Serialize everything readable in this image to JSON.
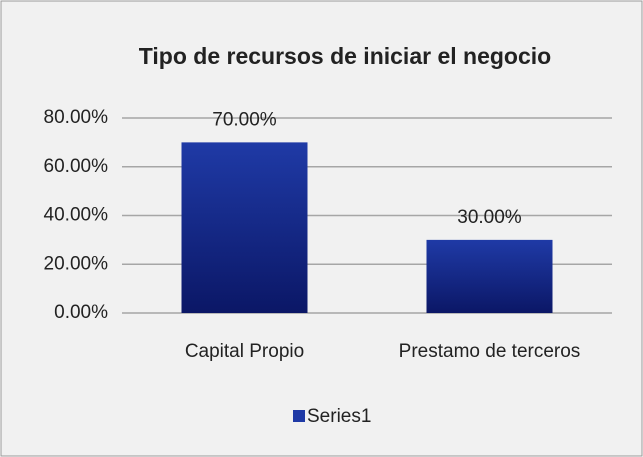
{
  "chart_data": {
    "type": "bar",
    "title": "Tipo de recursos de iniciar el negocio",
    "categories": [
      "Capital Propio",
      "Prestamo de terceros"
    ],
    "series": [
      {
        "name": "Series1",
        "color": "#1f3aa6",
        "values": [
          70,
          30
        ],
        "value_labels": [
          "70.00%",
          "30.00%"
        ]
      }
    ],
    "ylim": [
      0,
      80
    ],
    "yticks": [
      {
        "value": 0,
        "label": "0.00%"
      },
      {
        "value": 20,
        "label": "20.00%"
      },
      {
        "value": 40,
        "label": "40.00%"
      },
      {
        "value": 60,
        "label": "60.00%"
      },
      {
        "value": 80,
        "label": "80.00%"
      }
    ],
    "grid": true,
    "legend": "bottom"
  }
}
